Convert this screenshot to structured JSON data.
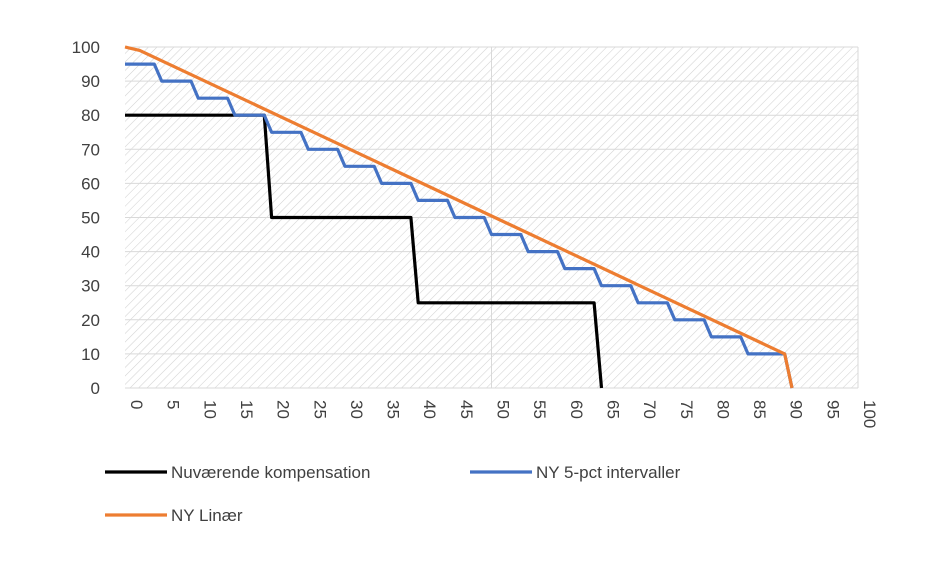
{
  "chart_data": {
    "type": "line",
    "xlim": [
      0,
      100
    ],
    "ylim": [
      0,
      100
    ],
    "x_ticks": [
      0,
      5,
      10,
      15,
      20,
      25,
      30,
      35,
      40,
      45,
      50,
      55,
      60,
      65,
      70,
      75,
      80,
      85,
      90,
      95,
      100
    ],
    "y_ticks": [
      0,
      10,
      20,
      30,
      40,
      50,
      60,
      70,
      80,
      90,
      100
    ],
    "x_tick_labels": [
      "0",
      "5",
      "10",
      "15",
      "20",
      "25",
      "30",
      "35",
      "40",
      "45",
      "50",
      "55",
      "60",
      "65",
      "70",
      "75",
      "80",
      "85",
      "90",
      "95",
      "100"
    ],
    "y_tick_labels": [
      "0",
      "10",
      "20",
      "30",
      "40",
      "50",
      "60",
      "70",
      "80",
      "90",
      "100"
    ],
    "grid": true,
    "plot_background": "diagonal hatching",
    "legend_position": "bottom-left",
    "series": [
      {
        "name": "Nuværende kompensation",
        "color": "#000000",
        "points": [
          [
            0,
            80
          ],
          [
            15,
            80
          ],
          [
            19,
            80
          ],
          [
            20,
            50
          ],
          [
            39,
            50
          ],
          [
            40,
            25
          ],
          [
            64,
            25
          ],
          [
            65,
            0
          ]
        ]
      },
      {
        "name": "NY 5-pct intervaller",
        "color": "#4472C4",
        "points": [
          [
            0,
            95
          ],
          [
            4,
            95
          ],
          [
            5,
            90
          ],
          [
            9,
            90
          ],
          [
            10,
            85
          ],
          [
            14,
            85
          ],
          [
            15,
            80
          ],
          [
            19,
            80
          ],
          [
            20,
            75
          ],
          [
            24,
            75
          ],
          [
            25,
            70
          ],
          [
            29,
            70
          ],
          [
            30,
            65
          ],
          [
            34,
            65
          ],
          [
            35,
            60
          ],
          [
            39,
            60
          ],
          [
            40,
            55
          ],
          [
            44,
            55
          ],
          [
            45,
            50
          ],
          [
            49,
            50
          ],
          [
            50,
            45
          ],
          [
            54,
            45
          ],
          [
            55,
            40
          ],
          [
            59,
            40
          ],
          [
            60,
            35
          ],
          [
            64,
            35
          ],
          [
            65,
            30
          ],
          [
            69,
            30
          ],
          [
            70,
            25
          ],
          [
            74,
            25
          ],
          [
            75,
            20
          ],
          [
            79,
            20
          ],
          [
            80,
            15
          ],
          [
            84,
            15
          ],
          [
            85,
            10
          ],
          [
            90,
            10
          ],
          [
            91,
            0
          ]
        ]
      },
      {
        "name": "NY Linær",
        "color": "#ED7D31",
        "points": [
          [
            0,
            100
          ],
          [
            2,
            99
          ],
          [
            90,
            10
          ],
          [
            91,
            0
          ]
        ]
      }
    ]
  }
}
